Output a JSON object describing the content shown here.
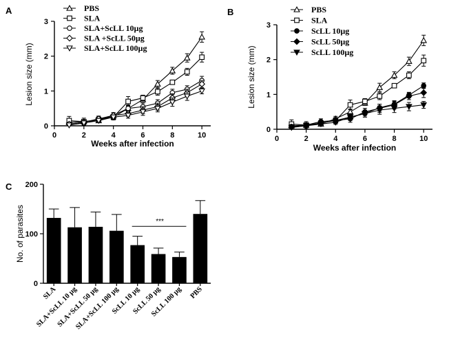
{
  "panel_labels": {
    "a": "A",
    "b": "B",
    "c": "C"
  },
  "chart_data": [
    {
      "type": "line",
      "panel": "A",
      "xlabel": "Weeks after infection",
      "ylabel": "Lesion size (mm)",
      "xlim": [
        0,
        10.6
      ],
      "ylim": [
        0,
        3
      ],
      "xticks": [
        0,
        2,
        4,
        6,
        8,
        10
      ],
      "yticks": [
        0,
        1,
        2,
        3
      ],
      "legend_position": "top",
      "x": [
        1,
        2,
        3,
        4,
        5,
        6,
        7,
        8,
        9,
        10
      ],
      "series": [
        {
          "name": "PBS",
          "marker": "triangle-up-open",
          "values": [
            0.1,
            0.12,
            0.15,
            0.3,
            0.5,
            0.75,
            1.2,
            1.58,
            1.95,
            2.55
          ],
          "errors": [
            0.05,
            0.04,
            0.05,
            0.07,
            0.08,
            0.07,
            0.1,
            0.1,
            0.12,
            0.15
          ]
        },
        {
          "name": "SLA",
          "marker": "square-open",
          "values": [
            0.15,
            0.12,
            0.18,
            0.25,
            0.7,
            0.8,
            0.98,
            1.25,
            1.55,
            1.97
          ],
          "errors": [
            0.12,
            0.1,
            0.06,
            0.08,
            0.14,
            0.08,
            0.1,
            0.05,
            0.1,
            0.14
          ]
        },
        {
          "name": "SLA+ScLL 10µg",
          "marker": "circle-open",
          "values": [
            0.05,
            0.1,
            0.2,
            0.25,
            0.5,
            0.55,
            0.65,
            0.95,
            1.05,
            1.3
          ],
          "errors": [
            0.05,
            0.05,
            0.08,
            0.08,
            0.1,
            0.1,
            0.1,
            0.1,
            0.1,
            0.12
          ]
        },
        {
          "name": "SLA +ScLL 50µg",
          "marker": "diamond-open",
          "values": [
            0.05,
            0.1,
            0.2,
            0.3,
            0.35,
            0.45,
            0.55,
            0.8,
            0.95,
            1.2
          ],
          "errors": [
            0.05,
            0.05,
            0.06,
            0.08,
            0.08,
            0.1,
            0.1,
            0.12,
            0.1,
            0.1
          ]
        },
        {
          "name": "SLA+ScLL 100µg",
          "marker": "triangle-down-open",
          "values": [
            0.02,
            0.08,
            0.15,
            0.25,
            0.3,
            0.4,
            0.5,
            0.68,
            0.85,
            1.0
          ],
          "errors": [
            0.03,
            0.05,
            0.06,
            0.06,
            0.08,
            0.1,
            0.1,
            0.12,
            0.12,
            0.08
          ]
        }
      ]
    },
    {
      "type": "line",
      "panel": "B",
      "xlabel": "Weeks after infection",
      "ylabel": "Lesion size (mm)",
      "xlim": [
        0,
        10.6
      ],
      "ylim": [
        0,
        3
      ],
      "xticks": [
        0,
        2,
        4,
        6,
        8,
        10
      ],
      "yticks": [
        0,
        1,
        2,
        3
      ],
      "legend_position": "top",
      "x": [
        1,
        2,
        3,
        4,
        5,
        6,
        7,
        8,
        9,
        10
      ],
      "series": [
        {
          "name": "PBS",
          "marker": "triangle-up-open",
          "values": [
            0.1,
            0.12,
            0.15,
            0.3,
            0.5,
            0.75,
            1.2,
            1.55,
            1.95,
            2.55
          ],
          "errors": [
            0.05,
            0.04,
            0.05,
            0.07,
            0.08,
            0.07,
            0.12,
            0.1,
            0.12,
            0.15
          ]
        },
        {
          "name": "SLA",
          "marker": "square-open",
          "values": [
            0.15,
            0.12,
            0.18,
            0.25,
            0.7,
            0.8,
            0.95,
            1.25,
            1.55,
            1.97
          ],
          "errors": [
            0.12,
            0.1,
            0.06,
            0.08,
            0.14,
            0.08,
            0.1,
            0.05,
            0.1,
            0.16
          ]
        },
        {
          "name": "ScLL 10µg",
          "marker": "circle-filled",
          "values": [
            0.08,
            0.12,
            0.22,
            0.25,
            0.35,
            0.45,
            0.62,
            0.72,
            0.98,
            1.25
          ],
          "errors": [
            0.05,
            0.05,
            0.08,
            0.08,
            0.1,
            0.1,
            0.1,
            0.08,
            0.08,
            0.08
          ]
        },
        {
          "name": "ScLL 50µg",
          "marker": "diamond-filled",
          "values": [
            0.06,
            0.1,
            0.18,
            0.25,
            0.3,
            0.5,
            0.6,
            0.7,
            0.95,
            1.05
          ],
          "errors": [
            0.05,
            0.05,
            0.06,
            0.08,
            0.1,
            0.1,
            0.12,
            0.12,
            0.1,
            0.14
          ]
        },
        {
          "name": "ScLL 100µg",
          "marker": "triangle-down-filled",
          "values": [
            0.05,
            0.1,
            0.15,
            0.2,
            0.35,
            0.45,
            0.55,
            0.6,
            0.65,
            0.7
          ],
          "errors": [
            0.03,
            0.05,
            0.06,
            0.06,
            0.08,
            0.1,
            0.12,
            0.12,
            0.12,
            0.1
          ]
        }
      ]
    },
    {
      "type": "bar",
      "panel": "C",
      "ylabel": "No. of parasites",
      "ylim": [
        0,
        200
      ],
      "yticks": [
        0,
        100,
        200
      ],
      "categories": [
        "SLA",
        "SLA+ScLL 10 µg",
        "SLA+ScLL 50 µg",
        "SLA+ScLL 100 µg",
        "ScLL 10 µg",
        "ScLL 50 µg",
        "ScLL 100 µg",
        "PBS"
      ],
      "values": [
        132,
        113,
        114,
        106,
        77,
        59,
        53,
        140
      ],
      "errors": [
        18,
        40,
        30,
        33,
        18,
        12,
        10,
        27
      ],
      "annotation": {
        "text": "***",
        "from_category": 4,
        "to_category": 6,
        "y": 115
      }
    }
  ]
}
